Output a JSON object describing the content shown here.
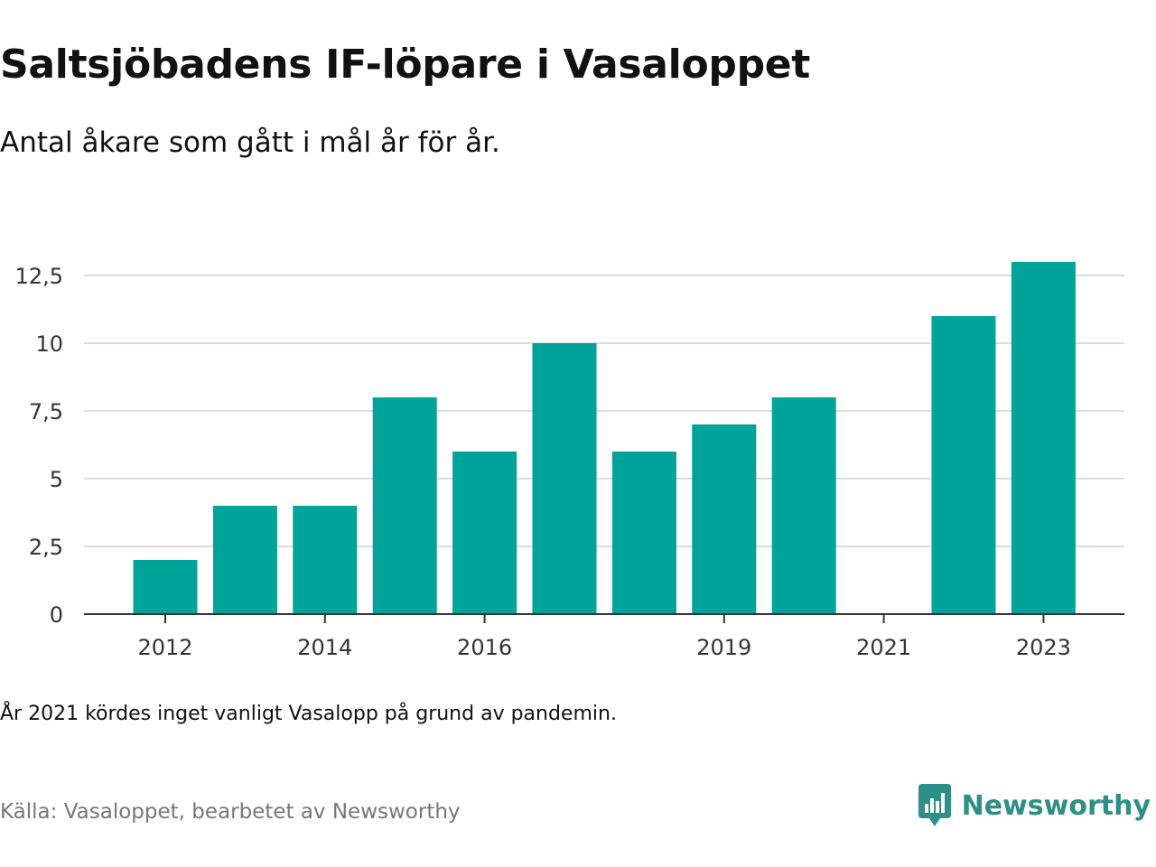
{
  "title": "Saltsjöbadens IF-löpare i Vasaloppet",
  "subtitle": "Antal åkare som gått i mål år för år.",
  "note": "År 2021 kördes inget vanligt Vasalopp på grund av pandemin.",
  "source": "Källa: Vasaloppet, bearbetet av Newsworthy",
  "brand": {
    "name": "Newsworthy",
    "logo_icon": "newsworthy-logo-icon"
  },
  "colors": {
    "bar": "#00a39a",
    "grid": "#dddddd",
    "axis": "#333333",
    "brand": "#2d8f85"
  },
  "chart_data": {
    "type": "bar",
    "categories": [
      "2012",
      "2013",
      "2014",
      "2015",
      "2016",
      "2017",
      "2018",
      "2019",
      "2020",
      "2021",
      "2022",
      "2023"
    ],
    "values": [
      2,
      4,
      4,
      8,
      6,
      10,
      6,
      7,
      8,
      0,
      11,
      13
    ],
    "title": "Saltsjöbadens IF-löpare i Vasaloppet",
    "xlabel": "",
    "ylabel": "",
    "ylim": [
      0,
      13
    ],
    "yticks": [
      "0",
      "2,5",
      "5",
      "7,5",
      "10",
      "12,5"
    ],
    "ytick_values": [
      0,
      2.5,
      5,
      7.5,
      10,
      12.5
    ],
    "xticks": [
      "2012",
      "2014",
      "2016",
      "2019",
      "2021",
      "2023"
    ],
    "grid": true,
    "legend": "none"
  }
}
